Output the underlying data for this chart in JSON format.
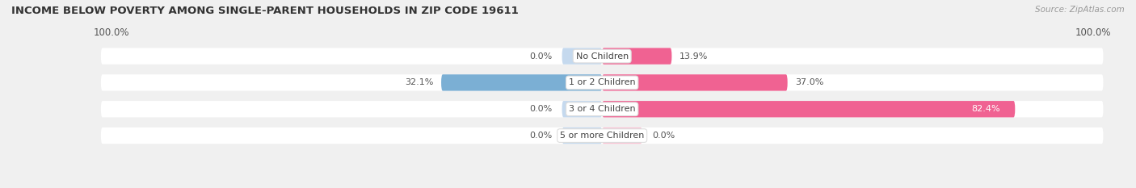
{
  "title": "INCOME BELOW POVERTY AMONG SINGLE-PARENT HOUSEHOLDS IN ZIP CODE 19611",
  "source": "Source: ZipAtlas.com",
  "categories": [
    "No Children",
    "1 or 2 Children",
    "3 or 4 Children",
    "5 or more Children"
  ],
  "father_values": [
    0.0,
    32.1,
    0.0,
    0.0
  ],
  "mother_values": [
    13.9,
    37.0,
    82.4,
    0.0
  ],
  "father_color": "#7bafd4",
  "mother_color": "#f06292",
  "father_bg_color": "#c5d9ee",
  "mother_bg_color": "#f9c4d4",
  "background_color": "#f0f0f0",
  "bar_bg_color": "#e8e8e8",
  "max_val": 100.0,
  "left_label": "100.0%",
  "right_label": "100.0%",
  "title_fontsize": 9.5,
  "source_fontsize": 7.5,
  "label_fontsize": 8.5,
  "category_fontsize": 8,
  "value_fontsize": 8
}
